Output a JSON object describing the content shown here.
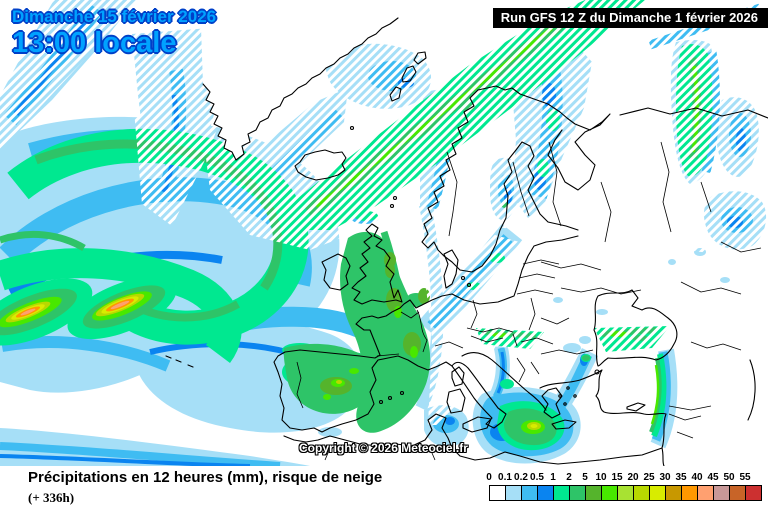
{
  "overlay": {
    "date_line1": "Dimanche 15 février 2026",
    "date_line2": "13:00 locale",
    "run_info": "Run GFS 12 Z du Dimanche 1 février 2026",
    "copyright": "Copyright © 2026 Meteociel.fr",
    "date_text_color": "#00A2FF",
    "date_outline_color": "#0040C8",
    "run_box_bg": "#000000",
    "run_box_text_color": "#FFFFFF"
  },
  "footer": {
    "title": "Précipitations en 12 heures (mm), risque de neige",
    "subtitle": "(+ 336h)",
    "legend": {
      "labels": [
        "0",
        "0.1",
        "0.2",
        "0.5",
        "1",
        "2",
        "5",
        "10",
        "15",
        "20",
        "25",
        "30",
        "35",
        "40",
        "45",
        "50",
        "55"
      ],
      "colors": [
        "#FFFFFF",
        "#A6DFF7",
        "#3FBCF2",
        "#0A84F0",
        "#00E890",
        "#2EC468",
        "#55B42C",
        "#48E800",
        "#A8E232",
        "#B8D800",
        "#D8EC00",
        "#C89800",
        "#FF9800",
        "#FFA070",
        "#C89898",
        "#C86428",
        "#CC3030"
      ]
    }
  }
}
